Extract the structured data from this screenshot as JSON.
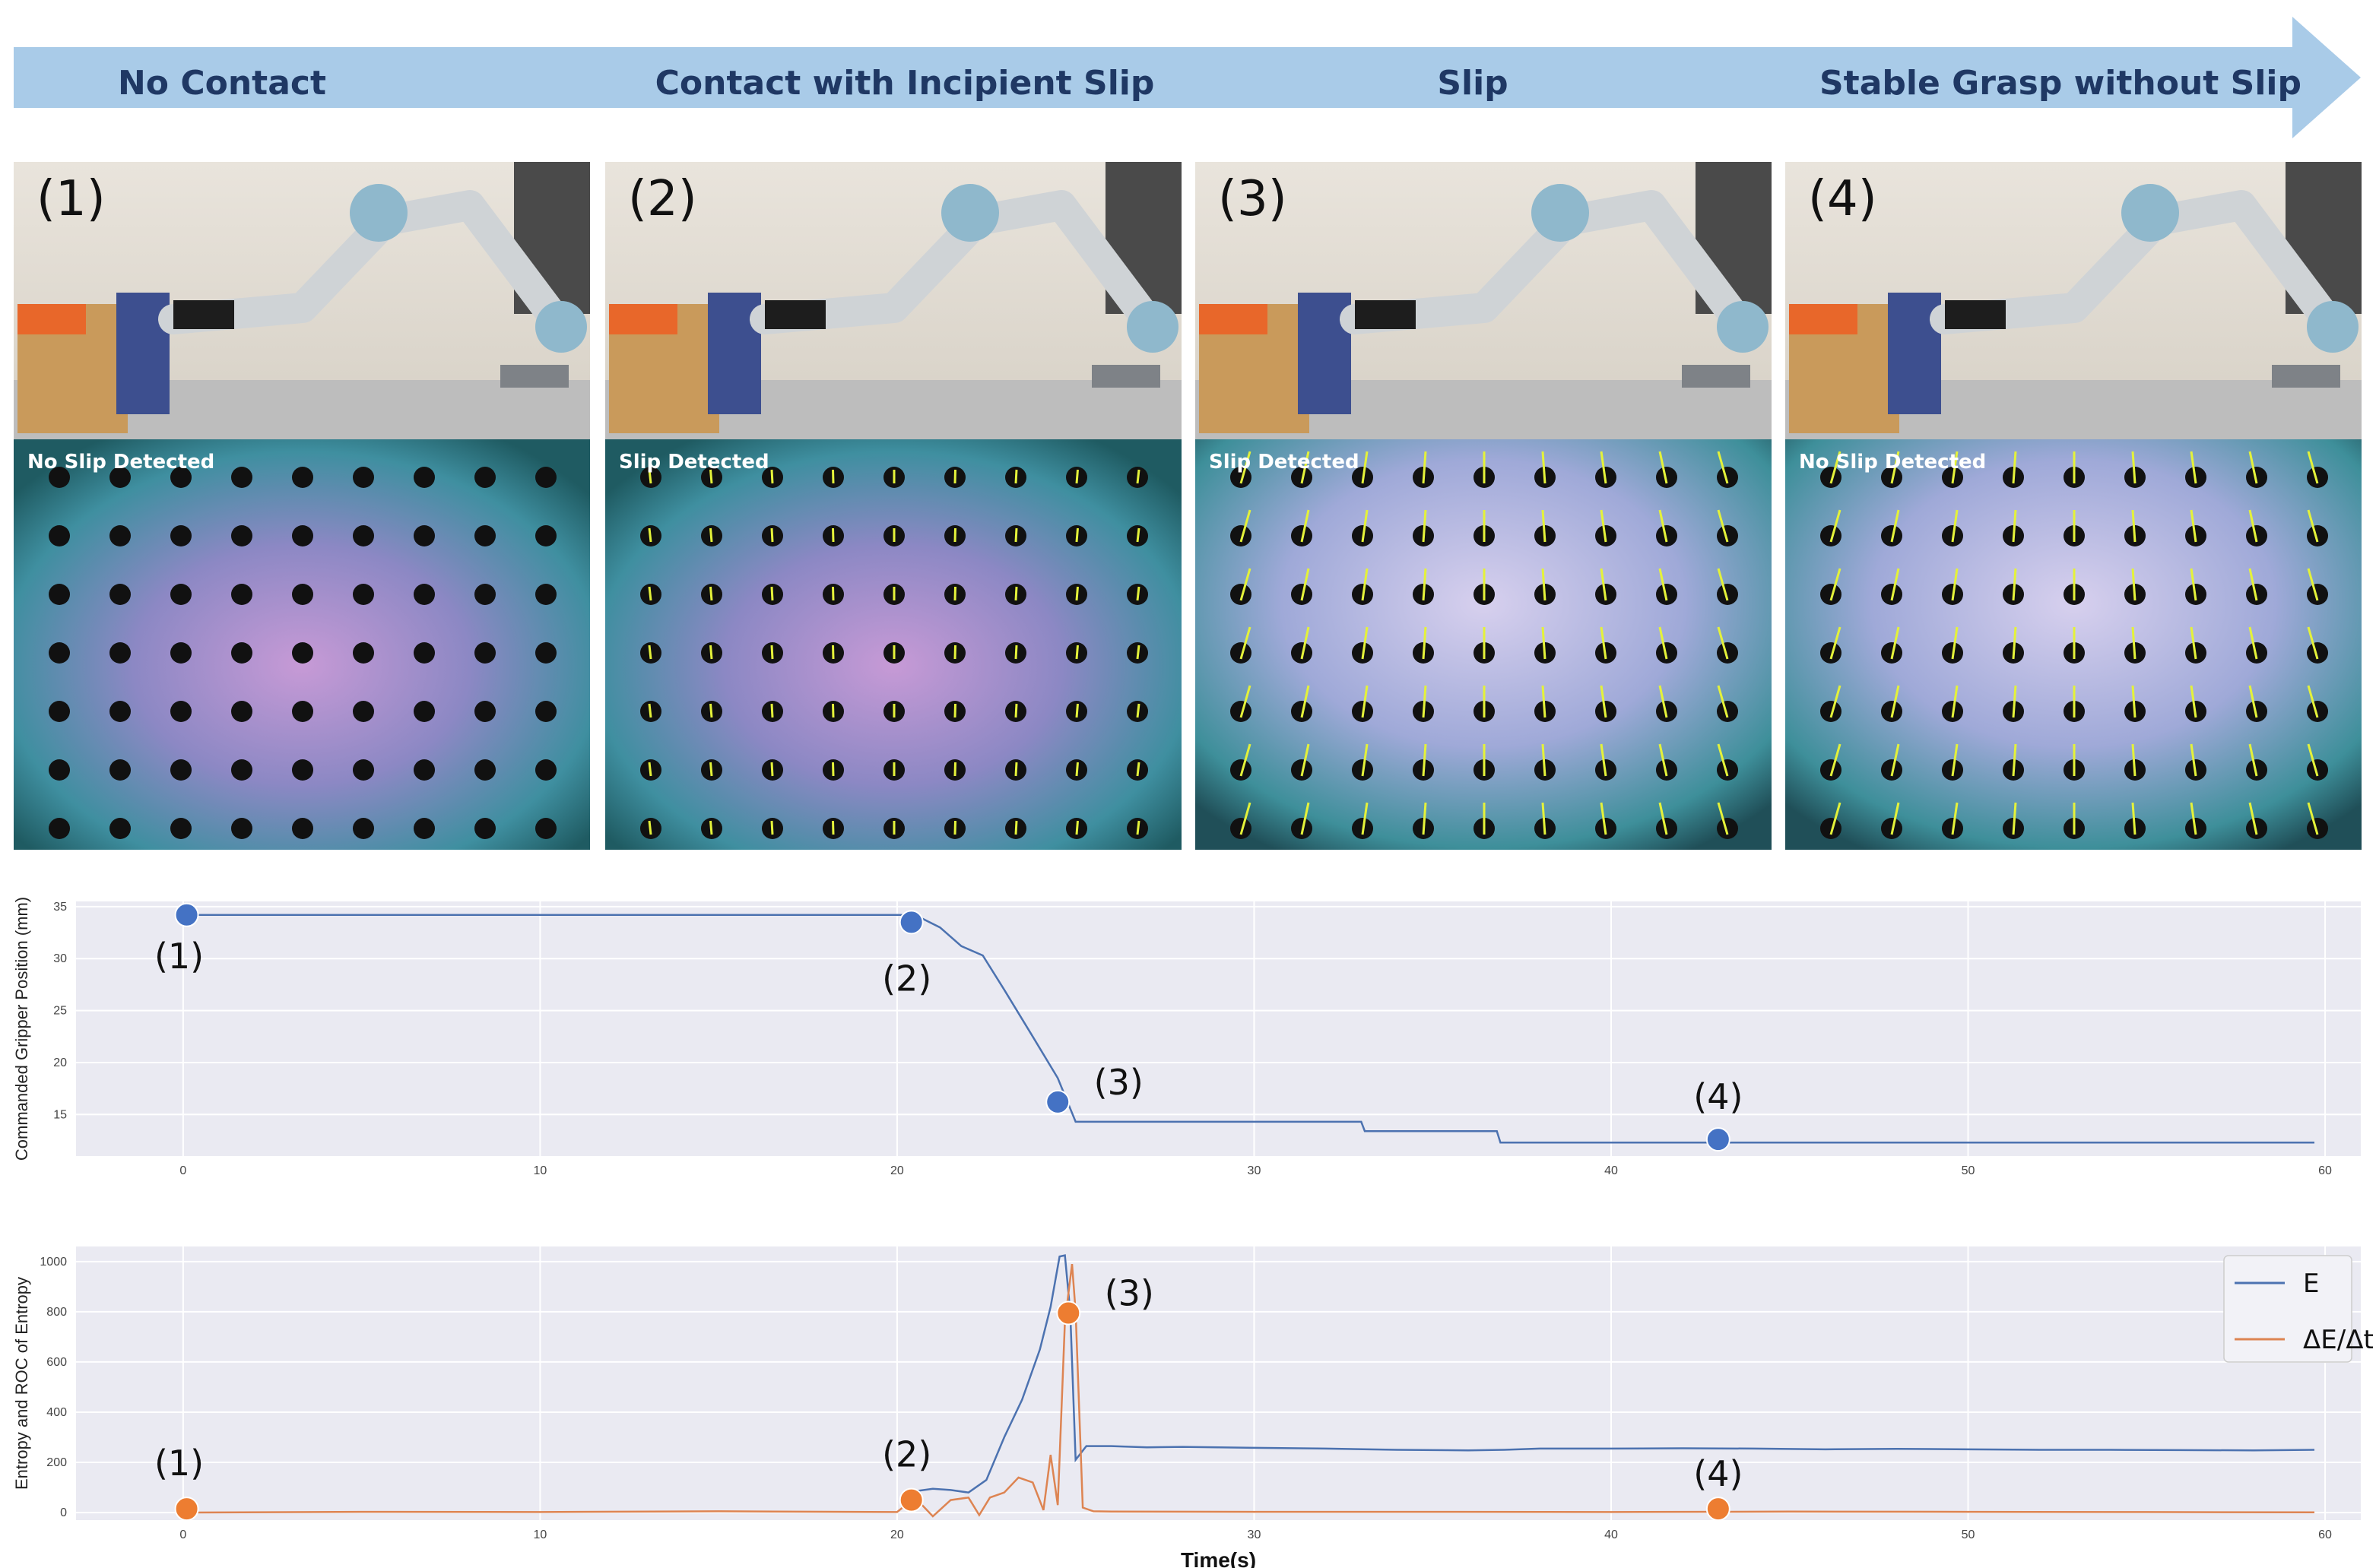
{
  "banner": {
    "phases": [
      "No Contact",
      "Contact with Incipient Slip",
      "Slip",
      "Stable Grasp without Slip"
    ],
    "color": "#a9cbe8",
    "text_color": "#1f3864"
  },
  "panels": [
    {
      "number": "(1)",
      "status": "No Slip Detected",
      "arrows": 0
    },
    {
      "number": "(2)",
      "status": "Slip Detected",
      "arrows": 0.15
    },
    {
      "number": "(3)",
      "status": "Slip Detected",
      "arrows": 1
    },
    {
      "number": "(4)",
      "status": "No Slip Detected",
      "arrows": 1
    }
  ],
  "chart_data": [
    {
      "type": "line",
      "ylabel": "Commanded Gripper Position (mm)",
      "xlim": [
        -3,
        61
      ],
      "ylim": [
        11,
        35.5
      ],
      "xticks": [
        0,
        10,
        20,
        30,
        40,
        50,
        60
      ],
      "yticks": [
        15,
        20,
        25,
        30,
        35
      ],
      "grid": true,
      "series": [
        {
          "color": "#4c72b0",
          "x": [
            0,
            20.5,
            21.2,
            21.8,
            22.4,
            23.0,
            23.8,
            24.5,
            25.0,
            33.0,
            33.1,
            36.8,
            36.9,
            59.7
          ],
          "y": [
            34.2,
            34.2,
            33.0,
            31.2,
            30.3,
            27.0,
            22.5,
            18.5,
            14.3,
            14.3,
            13.4,
            13.4,
            12.3,
            12.3
          ]
        }
      ],
      "markers": [
        {
          "label": "(1)",
          "x": 0.1,
          "y": 34.2
        },
        {
          "label": "(2)",
          "x": 20.4,
          "y": 33.5
        },
        {
          "label": "(3)",
          "x": 24.5,
          "y": 16.2
        },
        {
          "label": "(4)",
          "x": 43.0,
          "y": 12.6
        }
      ],
      "marker_color": "#4472c4"
    },
    {
      "type": "line",
      "ylabel": "Entropy and ROC of Entropy",
      "xlabel": "Time(s)",
      "xlim": [
        -3,
        61
      ],
      "ylim": [
        -30,
        1060
      ],
      "xticks": [
        0,
        10,
        20,
        30,
        40,
        50,
        60
      ],
      "yticks": [
        0,
        200,
        400,
        600,
        800,
        1000
      ],
      "grid": true,
      "legend_position": "top-right",
      "series": [
        {
          "name": "E",
          "color": "#4c72b0",
          "x": [
            0,
            20.4,
            20.5,
            21.0,
            21.5,
            22.0,
            22.5,
            23.0,
            23.5,
            24.0,
            24.3,
            24.55,
            24.7,
            24.85,
            25.0,
            25.3,
            26.0,
            27.0,
            28.0,
            30.0,
            32.0,
            34.0,
            36.0,
            37.0,
            38.0,
            40.0,
            42.0,
            44.0,
            46.0,
            48.0,
            50.0,
            52.0,
            54.0,
            56.0,
            58.0,
            59.7
          ],
          "y": [
            null,
            null,
            85,
            95,
            90,
            80,
            130,
            300,
            450,
            650,
            820,
            1020,
            1025,
            800,
            210,
            265,
            265,
            260,
            262,
            258,
            255,
            250,
            248,
            250,
            255,
            255,
            256,
            255,
            252,
            254,
            252,
            250,
            250,
            249,
            248,
            250
          ]
        },
        {
          "name": "ΔE/Δt",
          "color": "#dd8452",
          "x": [
            0,
            5,
            10,
            15,
            20,
            20.5,
            21.0,
            21.5,
            22.0,
            22.3,
            22.6,
            23.0,
            23.4,
            23.8,
            24.1,
            24.3,
            24.5,
            24.7,
            24.9,
            25.0,
            25.2,
            25.5,
            26.0,
            30.0,
            35.0,
            40.0,
            45.0,
            50.0,
            55.0,
            59.7
          ],
          "y": [
            0,
            3,
            2,
            5,
            2,
            60,
            -15,
            50,
            60,
            -10,
            60,
            80,
            140,
            120,
            10,
            230,
            30,
            760,
            990,
            800,
            20,
            5,
            4,
            3,
            3,
            2,
            4,
            3,
            2,
            1
          ]
        }
      ],
      "markers": [
        {
          "label": "(1)",
          "x": 0.1,
          "y": 15
        },
        {
          "label": "(2)",
          "x": 20.4,
          "y": 50
        },
        {
          "label": "(3)",
          "x": 24.8,
          "y": 795
        },
        {
          "label": "(4)",
          "x": 43.0,
          "y": 15
        }
      ],
      "marker_color": "#ed7d31"
    }
  ]
}
